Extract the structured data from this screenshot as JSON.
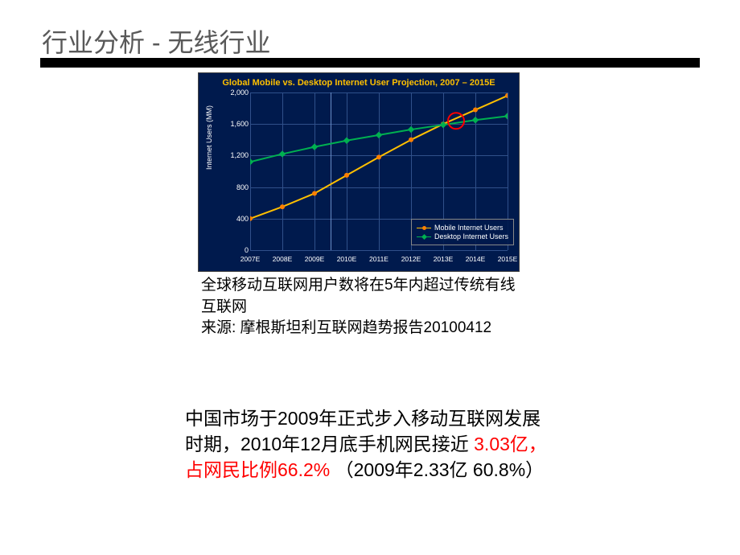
{
  "title": "行业分析 - 无线行业",
  "chart": {
    "type": "line",
    "title": "Global Mobile vs. Desktop Internet User Projection, 2007 – 2015E",
    "background_color": "#001a4d",
    "title_color": "#ffc000",
    "title_fontsize": 11,
    "grid_color": "#30508a",
    "axis_text_color": "#ffffff",
    "label_fontsize": 9,
    "ylabel": "Internet Users (MM)",
    "ylim": [
      0,
      2000
    ],
    "ytick_step": 400,
    "yticks": [
      "0",
      "400",
      "800",
      "1,200",
      "1,600",
      "2,000"
    ],
    "xticks": [
      "2007E",
      "2008E",
      "2009E",
      "2010E",
      "2011E",
      "2012E",
      "2013E",
      "2014E",
      "2015E"
    ],
    "series": [
      {
        "name": "Mobile Internet Users",
        "color": "#ffc000",
        "marker_color": "#ff8000",
        "line_width": 2,
        "marker": "circle",
        "values": [
          400,
          550,
          720,
          950,
          1180,
          1400,
          1600,
          1780,
          1960
        ]
      },
      {
        "name": "Desktop Internet Users",
        "color": "#00b050",
        "marker_color": "#00b050",
        "line_width": 2,
        "marker": "diamond",
        "values": [
          1120,
          1220,
          1310,
          1390,
          1460,
          1530,
          1590,
          1650,
          1700
        ]
      }
    ],
    "vertical_marker_index": 2.5,
    "vertical_marker_color": "#6a8cc7",
    "crossover_circle": {
      "x_index": 6.4,
      "y_value": 1640,
      "radius": 10,
      "color": "#ff0000"
    },
    "legend_position": "bottom-right"
  },
  "caption1": {
    "line1": "全球移动互联网用户数将在5年内超过传统有线互联网",
    "line2": "来源: 摩根斯坦利互联网趋势报告20100412"
  },
  "caption2": {
    "prefix": "中国市场于2009年正式步入移动互联网发展时期，2010年12月底手机网民接近",
    "highlight": "3.03亿，占网民比例66.2%",
    "suffix": "（2009年2.33亿 60.8%）"
  }
}
